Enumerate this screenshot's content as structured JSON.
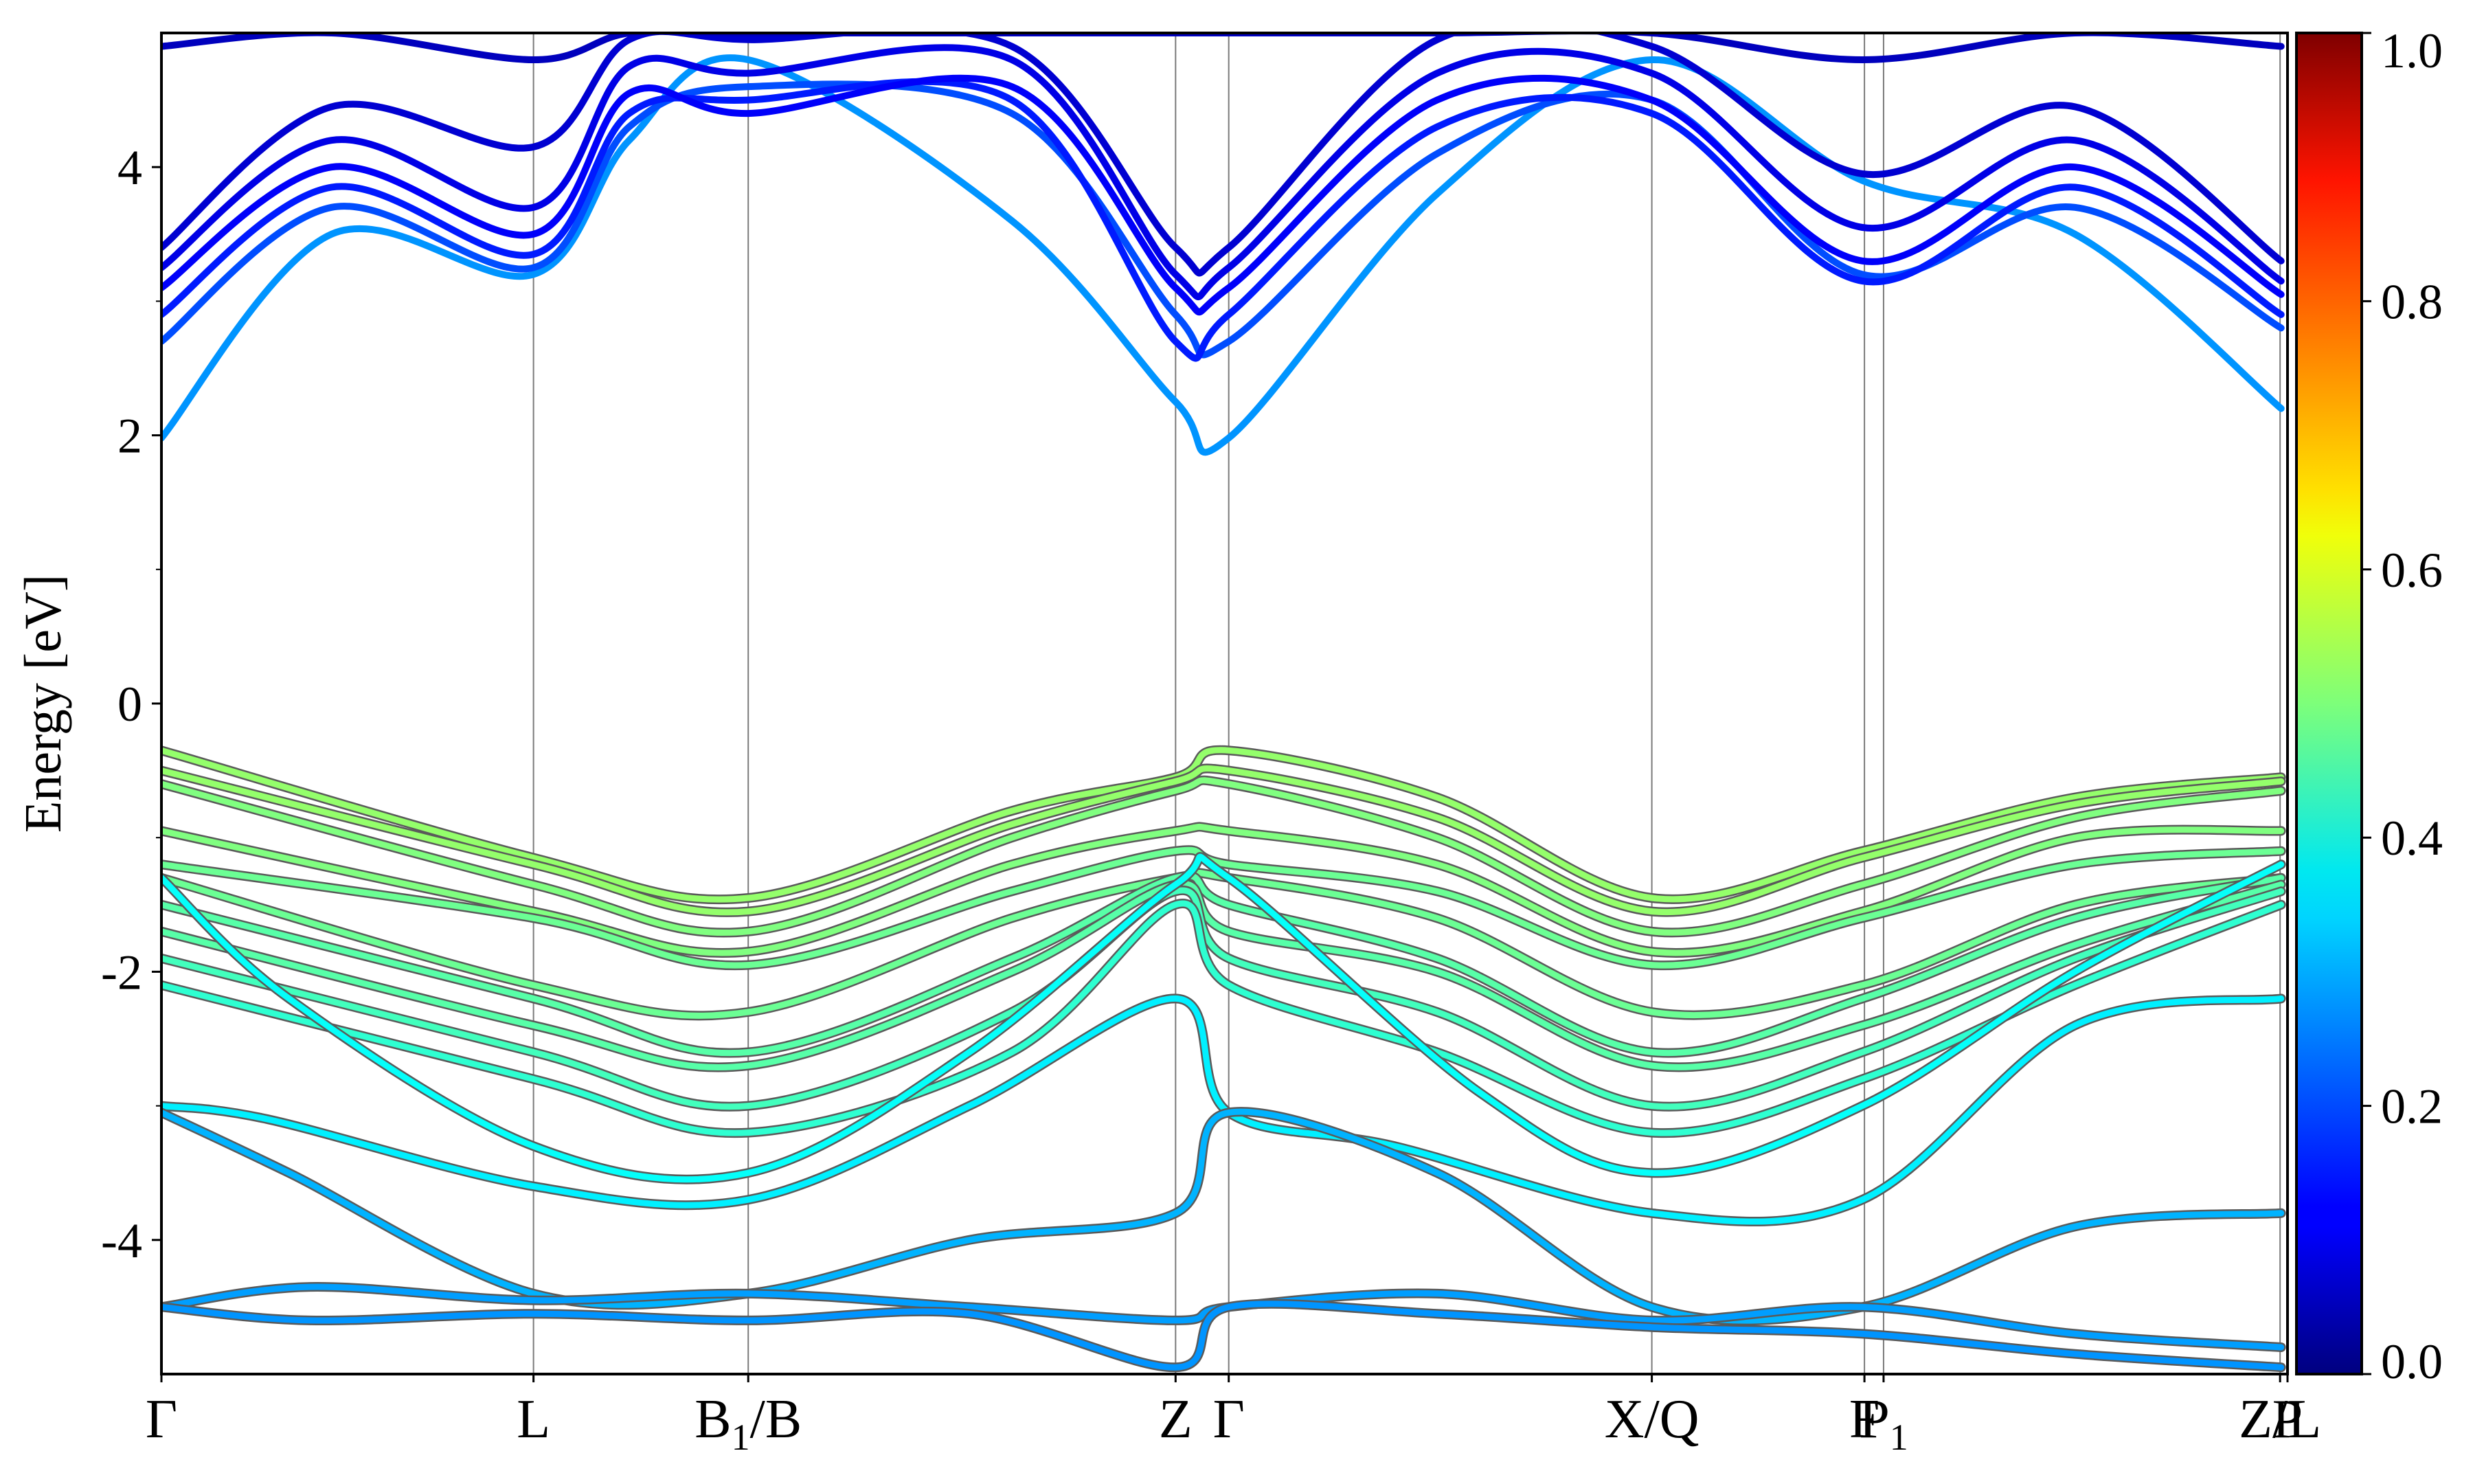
{
  "chart_data": {
    "type": "line",
    "title": "",
    "ylabel": "Energy [eV]",
    "xlabel": "",
    "ylim": [
      -5,
      5
    ],
    "y_ticks": [
      "4",
      "2",
      "0",
      "-2",
      "-4"
    ],
    "y_tick_values": [
      4,
      2,
      0,
      -2,
      -4
    ],
    "y_minor_ticks": [
      -3,
      -1,
      1,
      3
    ],
    "high_symmetry_points": [
      {
        "base": "Γ",
        "sub": "",
        "tail": "",
        "x": 0.0
      },
      {
        "base": "L",
        "sub": "",
        "tail": "",
        "x": 0.175
      },
      {
        "base": "B",
        "sub": "1",
        "tail": "/B",
        "x": 0.276
      },
      {
        "base": "Z",
        "sub": "",
        "tail": "",
        "x": 0.477
      },
      {
        "base": "Γ",
        "sub": "",
        "tail": "",
        "x": 0.502
      },
      {
        "base": "X/Q",
        "sub": "",
        "tail": "",
        "x": 0.701
      },
      {
        "base": "F",
        "sub": "",
        "tail": "",
        "x": 0.801
      },
      {
        "base": "P",
        "sub": "1",
        "tail": "",
        "x": 0.81
      },
      {
        "base": "Z/L",
        "sub": "",
        "tail": "",
        "x": 0.9965
      },
      {
        "base": "P",
        "sub": "",
        "tail": "",
        "x": 1.0
      }
    ],
    "x_range": [
      0,
      1
    ],
    "grid": false,
    "colorbar": {
      "colormap": "jet",
      "range": [
        0.0,
        1.0
      ],
      "tick_labels": [
        "1.0",
        "0.8",
        "0.6",
        "0.4",
        "0.2",
        "0.0"
      ],
      "tick_values": [
        1.0,
        0.8,
        0.6,
        0.4,
        0.2,
        0.0
      ]
    },
    "colors": {
      "conduction_deep": "#1a1ad4",
      "conduction_light": "#1e8ff0",
      "valence_top": "#8cf060",
      "valence_mid": "#40f0b0",
      "valence_deep": "#20a8f0"
    },
    "series": [
      {
        "band": "v1",
        "weight": 0.52,
        "x": [
          0,
          0.175,
          0.276,
          0.4,
          0.477,
          0.502,
          0.6,
          0.701,
          0.8,
          0.9,
          0.997
        ],
        "y": [
          -0.35,
          -1.15,
          -1.45,
          -0.8,
          -0.55,
          -0.35,
          -0.7,
          -1.45,
          -1.1,
          -0.7,
          -0.55
        ]
      },
      {
        "band": "v2",
        "weight": 0.52,
        "x": [
          0,
          0.175,
          0.276,
          0.4,
          0.477,
          0.502,
          0.6,
          0.701,
          0.8,
          0.9,
          0.997
        ],
        "y": [
          -0.5,
          -1.2,
          -1.55,
          -0.9,
          -0.58,
          -0.5,
          -0.85,
          -1.55,
          -1.15,
          -0.75,
          -0.58
        ]
      },
      {
        "band": "v3",
        "weight": 0.5,
        "x": [
          0,
          0.175,
          0.276,
          0.4,
          0.477,
          0.502,
          0.6,
          0.701,
          0.8,
          0.9,
          0.997
        ],
        "y": [
          -0.6,
          -1.35,
          -1.7,
          -1.0,
          -0.65,
          -0.6,
          -1.0,
          -1.7,
          -1.35,
          -0.85,
          -0.65
        ]
      },
      {
        "band": "v4",
        "weight": 0.5,
        "x": [
          0,
          0.175,
          0.276,
          0.4,
          0.477,
          0.502,
          0.6,
          0.701,
          0.8,
          0.9,
          0.997
        ],
        "y": [
          -0.95,
          -1.55,
          -1.85,
          -1.2,
          -0.95,
          -0.95,
          -1.2,
          -1.85,
          -1.55,
          -1.0,
          -0.95
        ]
      },
      {
        "band": "v5",
        "weight": 0.48,
        "x": [
          0,
          0.175,
          0.276,
          0.4,
          0.477,
          0.502,
          0.6,
          0.701,
          0.8,
          0.9,
          0.997
        ],
        "y": [
          -1.2,
          -1.6,
          -1.95,
          -1.4,
          -1.1,
          -1.2,
          -1.4,
          -1.95,
          -1.6,
          -1.2,
          -1.1
        ]
      },
      {
        "band": "v6",
        "weight": 0.48,
        "x": [
          0,
          0.175,
          0.276,
          0.4,
          0.477,
          0.502,
          0.6,
          0.701,
          0.8,
          0.9,
          0.997
        ],
        "y": [
          -1.3,
          -2.1,
          -2.3,
          -1.6,
          -1.3,
          -1.3,
          -1.6,
          -2.3,
          -2.1,
          -1.5,
          -1.3
        ]
      },
      {
        "band": "v7",
        "weight": 0.46,
        "x": [
          0,
          0.175,
          0.276,
          0.4,
          0.477,
          0.502,
          0.6,
          0.701,
          0.8,
          0.9,
          0.997
        ],
        "y": [
          -1.5,
          -2.2,
          -2.6,
          -1.9,
          -1.3,
          -1.5,
          -1.9,
          -2.6,
          -2.2,
          -1.6,
          -1.3
        ]
      },
      {
        "band": "v8",
        "weight": 0.46,
        "x": [
          0,
          0.175,
          0.276,
          0.4,
          0.477,
          0.502,
          0.6,
          0.701,
          0.8,
          0.9,
          0.997
        ],
        "y": [
          -1.7,
          -2.4,
          -2.7,
          -2.0,
          -1.35,
          -1.7,
          -2.0,
          -2.7,
          -2.4,
          -1.8,
          -1.35
        ]
      },
      {
        "band": "v9",
        "weight": 0.44,
        "x": [
          0,
          0.175,
          0.276,
          0.4,
          0.477,
          0.502,
          0.6,
          0.701,
          0.8,
          0.9,
          0.997
        ],
        "y": [
          -1.9,
          -2.6,
          -3.0,
          -2.3,
          -1.4,
          -1.9,
          -2.3,
          -3.0,
          -2.6,
          -1.9,
          -1.4
        ]
      },
      {
        "band": "v10",
        "weight": 0.42,
        "x": [
          0,
          0.175,
          0.276,
          0.4,
          0.477,
          0.502,
          0.6,
          0.701,
          0.8,
          0.9,
          0.997
        ],
        "y": [
          -2.1,
          -2.8,
          -3.2,
          -2.6,
          -1.5,
          -2.1,
          -2.6,
          -3.2,
          -2.8,
          -2.1,
          -1.5
        ]
      },
      {
        "band": "v11",
        "weight": 0.38,
        "x": [
          0,
          0.06,
          0.175,
          0.276,
          0.38,
          0.477,
          0.502,
          0.62,
          0.701,
          0.8,
          0.9,
          0.997
        ],
        "y": [
          -1.3,
          -2.2,
          -3.3,
          -3.5,
          -2.6,
          -1.35,
          -1.3,
          -2.9,
          -3.5,
          -3.0,
          -2.0,
          -1.2
        ]
      },
      {
        "band": "v12",
        "weight": 0.36,
        "x": [
          0,
          0.05,
          0.175,
          0.276,
          0.38,
          0.477,
          0.502,
          0.58,
          0.701,
          0.8,
          0.9,
          0.997
        ],
        "y": [
          -3.0,
          -3.1,
          -3.6,
          -3.7,
          -3.0,
          -2.2,
          -3.05,
          -3.3,
          -3.8,
          -3.7,
          -2.4,
          -2.2
        ]
      },
      {
        "band": "v13",
        "weight": 0.3,
        "x": [
          0,
          0.06,
          0.175,
          0.276,
          0.38,
          0.477,
          0.502,
          0.6,
          0.701,
          0.8,
          0.9,
          0.997
        ],
        "y": [
          -3.05,
          -3.5,
          -4.4,
          -4.4,
          -4.0,
          -3.8,
          -3.05,
          -3.5,
          -4.5,
          -4.5,
          -3.9,
          -3.8
        ]
      },
      {
        "band": "v14",
        "weight": 0.28,
        "x": [
          0,
          0.07,
          0.175,
          0.276,
          0.38,
          0.477,
          0.502,
          0.6,
          0.701,
          0.8,
          0.9,
          0.997
        ],
        "y": [
          -4.5,
          -4.35,
          -4.45,
          -4.4,
          -4.5,
          -4.6,
          -4.5,
          -4.4,
          -4.6,
          -4.5,
          -4.7,
          -4.8
        ]
      },
      {
        "band": "v15",
        "weight": 0.27,
        "x": [
          0,
          0.07,
          0.175,
          0.276,
          0.38,
          0.477,
          0.502,
          0.6,
          0.701,
          0.8,
          0.9,
          0.997
        ],
        "y": [
          -4.5,
          -4.6,
          -4.55,
          -4.6,
          -4.55,
          -4.95,
          -4.5,
          -4.55,
          -4.65,
          -4.7,
          -4.85,
          -4.95
        ]
      },
      {
        "band": "c1",
        "weight": 0.27,
        "x": [
          0,
          0.08,
          0.175,
          0.22,
          0.276,
          0.4,
          0.477,
          0.502,
          0.6,
          0.701,
          0.8,
          0.9,
          0.997
        ],
        "y": [
          1.98,
          3.5,
          3.2,
          4.2,
          4.8,
          3.6,
          2.25,
          1.98,
          3.8,
          4.8,
          3.9,
          3.5,
          2.2
        ]
      },
      {
        "band": "c2",
        "weight": 0.2,
        "x": [
          0,
          0.08,
          0.175,
          0.22,
          0.276,
          0.4,
          0.477,
          0.502,
          0.6,
          0.701,
          0.8,
          0.9,
          0.997
        ],
        "y": [
          2.7,
          3.7,
          3.25,
          4.3,
          4.6,
          4.4,
          2.9,
          2.7,
          4.1,
          4.5,
          3.2,
          3.7,
          2.8
        ]
      },
      {
        "band": "c3",
        "weight": 0.15,
        "x": [
          0,
          0.08,
          0.175,
          0.22,
          0.276,
          0.4,
          0.477,
          0.502,
          0.6,
          0.701,
          0.8,
          0.9,
          0.997
        ],
        "y": [
          2.9,
          3.85,
          3.35,
          4.4,
          4.5,
          4.5,
          2.7,
          2.9,
          4.3,
          4.4,
          3.15,
          3.85,
          2.9
        ]
      },
      {
        "band": "c4",
        "weight": 0.12,
        "x": [
          0,
          0.08,
          0.175,
          0.22,
          0.276,
          0.4,
          0.477,
          0.502,
          0.6,
          0.701,
          0.8,
          0.9,
          0.997
        ],
        "y": [
          3.1,
          4.0,
          3.5,
          4.55,
          4.4,
          4.6,
          3.1,
          3.1,
          4.5,
          4.5,
          3.3,
          4.0,
          3.05
        ]
      },
      {
        "band": "c5",
        "weight": 0.1,
        "x": [
          0,
          0.08,
          0.175,
          0.22,
          0.276,
          0.4,
          0.477,
          0.502,
          0.6,
          0.701,
          0.8,
          0.9,
          0.997
        ],
        "y": [
          3.25,
          4.2,
          3.7,
          4.75,
          4.7,
          4.8,
          3.2,
          3.25,
          4.7,
          4.7,
          3.55,
          4.2,
          3.15
        ]
      },
      {
        "band": "c6",
        "weight": 0.08,
        "x": [
          0,
          0.08,
          0.175,
          0.22,
          0.276,
          0.4,
          0.477,
          0.502,
          0.6,
          0.701,
          0.8,
          0.9,
          0.997
        ],
        "y": [
          3.4,
          4.45,
          4.15,
          4.95,
          4.95,
          4.9,
          3.4,
          3.4,
          4.95,
          4.9,
          3.95,
          4.45,
          3.3
        ]
      },
      {
        "band": "c7",
        "weight": 0.06,
        "x": [
          0,
          0.08,
          0.175,
          0.22,
          0.276,
          0.4,
          0.477,
          0.502,
          0.6,
          0.701,
          0.8,
          0.9,
          0.997
        ],
        "y": [
          4.9,
          5.0,
          4.8,
          5.0,
          5.0,
          5.0,
          5.0,
          5.0,
          5.0,
          5.0,
          4.8,
          5.0,
          4.9
        ]
      }
    ]
  }
}
